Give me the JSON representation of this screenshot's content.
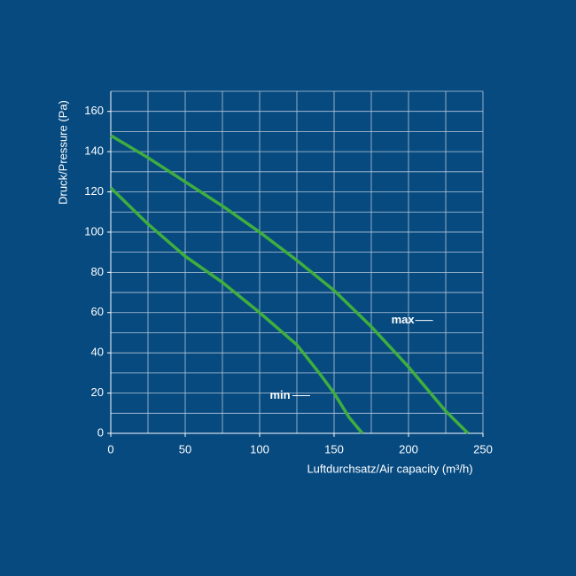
{
  "chart_data": {
    "type": "line",
    "xlabel": "Luftdurchsatz/Air capacity (m³/h)",
    "ylabel": "Druck/Pressure (Pa)",
    "xlim": [
      0,
      250
    ],
    "ylim": [
      0,
      170
    ],
    "xticks": [
      0,
      50,
      100,
      150,
      200,
      250
    ],
    "yticks": [
      0,
      20,
      40,
      60,
      80,
      100,
      120,
      140,
      160
    ],
    "xgrid": [
      0,
      25,
      50,
      75,
      100,
      125,
      150,
      175,
      200,
      225,
      250
    ],
    "ygrid": [
      0,
      10,
      20,
      30,
      40,
      50,
      60,
      70,
      80,
      90,
      100,
      110,
      120,
      130,
      140,
      150,
      160,
      170
    ],
    "grid": true,
    "series": [
      {
        "name": "max",
        "color": "#3fae3f",
        "x": [
          0,
          25,
          50,
          75,
          100,
          125,
          150,
          175,
          200,
          225,
          240
        ],
        "values": [
          148,
          137,
          125,
          113,
          100,
          86,
          71,
          53,
          33,
          11,
          0
        ]
      },
      {
        "name": "min",
        "color": "#3fae3f",
        "x": [
          0,
          25,
          50,
          75,
          100,
          125,
          140,
          150,
          160,
          169
        ],
        "values": [
          122,
          104,
          88,
          75,
          60,
          44,
          30,
          20,
          8,
          0
        ]
      }
    ]
  }
}
